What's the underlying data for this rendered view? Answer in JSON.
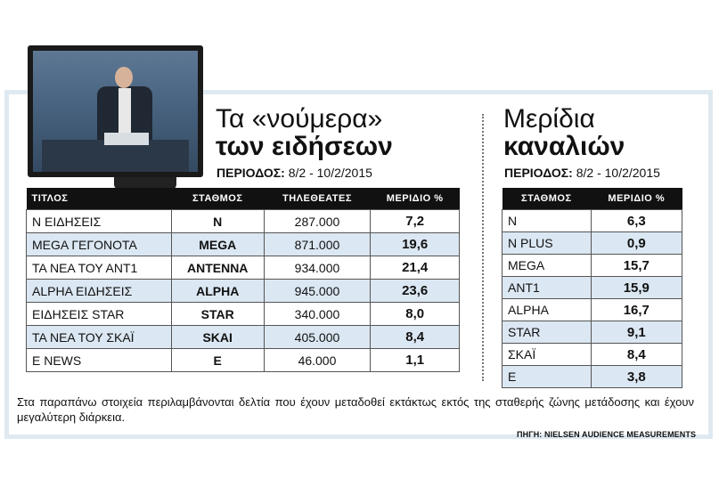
{
  "left": {
    "title_line1": "Τα «νούμερα»",
    "title_line2": "των ειδήσεων",
    "period_label": "ΠΕΡΙΟΔΟΣ:",
    "period_value": " 8/2 - 10/2/2015",
    "headers": [
      "ΤΙΤΛΟΣ",
      "ΣΤΑΘΜΟΣ",
      "ΤΗΛΕΘΕΑΤΕΣ",
      "ΜΕΡΙΔΙΟ %"
    ],
    "rows": [
      {
        "title": "Ν ΕΙΔΗΣΕΙΣ",
        "station": "Ν",
        "viewers": "287.000",
        "share": "7,2"
      },
      {
        "title": "MEGA ΓΕΓΟΝΟΤΑ",
        "station": "MEGA",
        "viewers": "871.000",
        "share": "19,6"
      },
      {
        "title": "ΤΑ ΝΕΑ ΤΟΥ ΑΝΤ1",
        "station": "ANTENNA",
        "viewers": "934.000",
        "share": "21,4"
      },
      {
        "title": "ALPHA ΕΙΔΗΣΕΙΣ",
        "station": "ALPHA",
        "viewers": "945.000",
        "share": "23,6"
      },
      {
        "title": "ΕΙΔΗΣΕΙΣ STAR",
        "station": "STAR",
        "viewers": "340.000",
        "share": "8,0"
      },
      {
        "title": "ΤΑ ΝΕΑ ΤΟΥ ΣΚΑΪ",
        "station": "SKAI",
        "viewers": "405.000",
        "share": "8,4"
      },
      {
        "title": "E NEWS",
        "station": "E",
        "viewers": "46.000",
        "share": "1,1"
      }
    ]
  },
  "right": {
    "title_line1": "Μερίδια",
    "title_line2": "καναλιών",
    "period_label": "ΠΕΡΙΟΔΟΣ:",
    "period_value": " 8/2 - 10/2/2015",
    "headers": [
      "ΣΤΑΘΜΟΣ",
      "ΜΕΡΙΔΙΟ %"
    ],
    "rows": [
      {
        "station": "Ν",
        "share": "6,3"
      },
      {
        "station": "N PLUS",
        "share": "0,9"
      },
      {
        "station": "MEGA",
        "share": "15,7"
      },
      {
        "station": "ANT1",
        "share": "15,9"
      },
      {
        "station": "ALPHA",
        "share": "16,7"
      },
      {
        "station": "STAR",
        "share": "9,1"
      },
      {
        "station": "ΣΚΑΪ",
        "share": "8,4"
      },
      {
        "station": "E",
        "share": "3,8"
      }
    ]
  },
  "note": "Στα παραπάνω στοιχεία περιλαμβάνονται δελτία που έχουν μεταδοθεί εκτάκτως εκτός της σταθερής ζώνης μετάδοσης και έχουν μεγαλύτερη διάρκεια.",
  "source": "ΠΗΓΗ: NIELSEN AUDIENCE MEASUREMENTS",
  "colors": {
    "header_bg": "#111111",
    "alt_row": "#dbe7f2",
    "frame": "#dfe9f1"
  }
}
